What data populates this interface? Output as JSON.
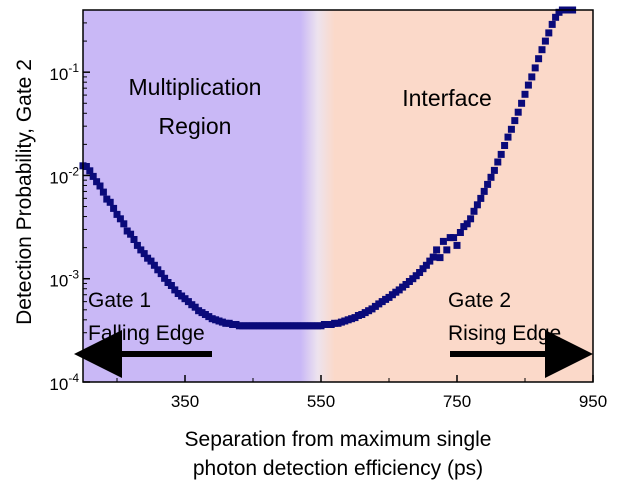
{
  "chart_data": {
    "type": "scatter",
    "title": "",
    "xlabel_line1": "Separation from maximum single",
    "xlabel_line2": "photon detection efficiency (ps)",
    "ylabel": "Detection Probability, Gate 2",
    "x_scale": "linear",
    "y_scale": "log",
    "xlim": [
      200,
      950
    ],
    "ylim": [
      0.0001,
      0.4
    ],
    "x_ticks": [
      350,
      550,
      750,
      950
    ],
    "x_tick_labels": [
      "350",
      "550",
      "750",
      "950"
    ],
    "y_ticks": [
      0.0001,
      0.001,
      0.01,
      0.1
    ],
    "y_tick_label_bases": [
      "10",
      "10",
      "10",
      "10"
    ],
    "y_tick_label_exps": [
      "-4",
      "-3",
      "-2",
      "-1"
    ],
    "grid": false,
    "marker_color": "#0a0a7a",
    "regions": [
      {
        "label_line1": "Multiplication",
        "label_line2": "Region",
        "color": "#c9b8f6",
        "x_from": 200,
        "x_to": 520
      },
      {
        "label_line1": "Interface",
        "label_line2": "",
        "color": "#fbd9c9",
        "x_from": 570,
        "x_to": 950
      }
    ],
    "annotations": [
      {
        "line1": "Gate 1",
        "line2": "Falling Edge",
        "arrow": "left"
      },
      {
        "line1": "Gate 2",
        "line2": "Rising Edge",
        "arrow": "right"
      }
    ],
    "series": [
      {
        "x": [
          200,
          205,
          210,
          215,
          220,
          225,
          230,
          235,
          240,
          245,
          250,
          255,
          260,
          265,
          270,
          275,
          280,
          285,
          290,
          295,
          300,
          305,
          310,
          315,
          320,
          325,
          330,
          335,
          340,
          345,
          350,
          355,
          360,
          365,
          370,
          375,
          380,
          385,
          390,
          395,
          400,
          405,
          410,
          415,
          420,
          425,
          430,
          435,
          440,
          445,
          450,
          455,
          460,
          465,
          470,
          475,
          480,
          485,
          490,
          495,
          500,
          505,
          510,
          515,
          520,
          525,
          530,
          535,
          540,
          545,
          550,
          555,
          560,
          565,
          570,
          575,
          580,
          585,
          590,
          595,
          600,
          605,
          610,
          615,
          620,
          625,
          630,
          635,
          640,
          645,
          650,
          655,
          660,
          665,
          670,
          675,
          680,
          685,
          690,
          695,
          700,
          705,
          710,
          715,
          720,
          725,
          730,
          735,
          740,
          745,
          750,
          755,
          760,
          765,
          770,
          775,
          780,
          785,
          790,
          795,
          800,
          805,
          810,
          815,
          820,
          825,
          830,
          835,
          840,
          845,
          850,
          855,
          860,
          865,
          870,
          875,
          880,
          885,
          890,
          895,
          900,
          905,
          910,
          915,
          920
        ],
        "y": [
          0.0124,
          0.0122,
          0.0111,
          0.0098,
          0.0087,
          0.0079,
          0.0069,
          0.0059,
          0.0055,
          0.0048,
          0.0042,
          0.0038,
          0.0034,
          0.0029,
          0.0027,
          0.0024,
          0.0021,
          0.0019,
          0.00175,
          0.00158,
          0.00148,
          0.00135,
          0.00122,
          0.00112,
          0.00101,
          0.00092,
          0.00086,
          0.00078,
          0.00072,
          0.00068,
          0.00064,
          0.0006,
          0.00056,
          0.00053,
          0.00049,
          0.00047,
          0.00045,
          0.00043,
          0.00041,
          0.0004,
          0.00039,
          0.00038,
          0.00037,
          0.00037,
          0.00036,
          0.00036,
          0.00035,
          0.00035,
          0.00035,
          0.00035,
          0.00035,
          0.00035,
          0.00035,
          0.00035,
          0.00035,
          0.00035,
          0.00035,
          0.00035,
          0.00035,
          0.00035,
          0.00035,
          0.00035,
          0.00035,
          0.00035,
          0.00035,
          0.00035,
          0.00035,
          0.00035,
          0.00035,
          0.00035,
          0.00035,
          0.00036,
          0.00036,
          0.00036,
          0.00037,
          0.00037,
          0.00038,
          0.00039,
          0.0004,
          0.00041,
          0.00042,
          0.00044,
          0.00045,
          0.00047,
          0.00049,
          0.00051,
          0.00054,
          0.00057,
          0.0006,
          0.00063,
          0.00066,
          0.0007,
          0.00074,
          0.00078,
          0.00083,
          0.00088,
          0.00094,
          0.001,
          0.00107,
          0.00115,
          0.00125,
          0.00135,
          0.00148,
          0.00162,
          0.0019,
          0.0016,
          0.0023,
          0.0019,
          0.0025,
          0.0025,
          0.0021,
          0.0028,
          0.0032,
          0.0034,
          0.0038,
          0.0045,
          0.0052,
          0.006,
          0.007,
          0.0082,
          0.0096,
          0.0112,
          0.0135,
          0.016,
          0.0195,
          0.0235,
          0.028,
          0.034,
          0.041,
          0.05,
          0.061,
          0.075,
          0.09,
          0.11,
          0.135,
          0.165,
          0.2,
          0.24,
          0.29,
          0.34,
          0.38,
          0.4,
          0.4,
          0.4,
          0.4
        ]
      }
    ]
  }
}
